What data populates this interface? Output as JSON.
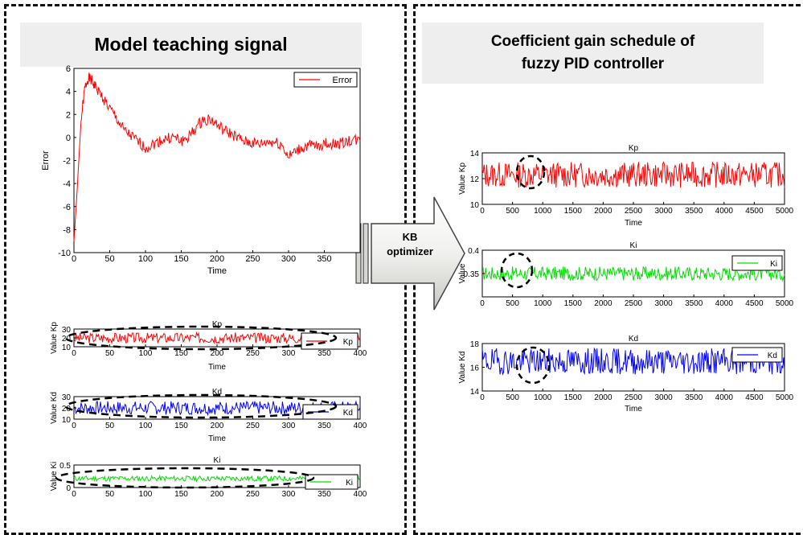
{
  "panels": {
    "left_title": "Model teaching signal",
    "right_title_line1": "Coefficient gain schedule of",
    "right_title_line2": "fuzzy PID controller"
  },
  "arrow": {
    "line1": "KB",
    "line2": "optimizer"
  },
  "colors": {
    "error": "#ff0000",
    "kp": "#ff0000",
    "kd": "#0000ff",
    "ki": "#00dd00",
    "panel_border": "#111111",
    "title_bg": "#eeeeee"
  },
  "chart_data": [
    {
      "id": "error",
      "type": "line",
      "title": "",
      "xlabel": "Time",
      "ylabel": "Error",
      "xlim": [
        0,
        400
      ],
      "ylim": [
        -10,
        6
      ],
      "xticks": [
        0,
        50,
        100,
        150,
        200,
        250,
        300,
        350
      ],
      "yticks": [
        6,
        4,
        2,
        0,
        -2,
        -4,
        -6,
        -8,
        -10
      ],
      "legend": "top-right",
      "series": [
        {
          "name": "Error",
          "x": [
            0,
            5,
            10,
            15,
            20,
            25,
            30,
            40,
            50,
            60,
            70,
            80,
            90,
            100,
            110,
            120,
            130,
            140,
            150,
            160,
            170,
            180,
            190,
            200,
            210,
            220,
            230,
            240,
            250,
            260,
            270,
            280,
            290,
            300,
            310,
            320,
            330,
            340,
            350,
            360,
            370,
            380,
            390,
            400
          ],
          "y": [
            -9,
            -4,
            1.5,
            4.2,
            5.2,
            4.9,
            4.4,
            3.5,
            2.5,
            1.6,
            0.6,
            0.1,
            -0.4,
            -0.9,
            -0.6,
            -0.3,
            -0.1,
            0,
            -0.3,
            0,
            0.8,
            1.5,
            1.6,
            1.1,
            0.6,
            0.3,
            -0.1,
            -0.4,
            -0.5,
            -0.6,
            -0.4,
            -0.4,
            -0.6,
            -1.7,
            -1.2,
            -0.9,
            -0.7,
            -0.8,
            -0.5,
            -0.6,
            -0.5,
            -0.4,
            -0.2,
            -0.3
          ]
        }
      ]
    },
    {
      "id": "left-kp",
      "type": "line",
      "title": "Kp",
      "xlabel": "Time",
      "ylabel": "Value Kp",
      "xlim": [
        0,
        400
      ],
      "ylim": [
        10,
        30
      ],
      "xticks": [
        0,
        50,
        100,
        150,
        200,
        250,
        300,
        350,
        400
      ],
      "yticks": [
        30,
        20,
        10
      ],
      "legend": "bottom-right",
      "series": [
        {
          "name": "Kp",
          "mean": 20,
          "amplitude": 6
        }
      ]
    },
    {
      "id": "left-kd",
      "type": "line",
      "title": "Kd",
      "xlabel": "Time",
      "ylabel": "Value Kd",
      "xlim": [
        0,
        400
      ],
      "ylim": [
        10,
        30
      ],
      "xticks": [
        0,
        50,
        100,
        150,
        200,
        250,
        300,
        350,
        400
      ],
      "yticks": [
        30,
        20,
        10
      ],
      "legend": "bottom-right",
      "series": [
        {
          "name": "Kd",
          "mean": 20,
          "amplitude": 6
        }
      ]
    },
    {
      "id": "left-ki",
      "type": "line",
      "title": "Ki",
      "xlabel": "",
      "ylabel": "Value Ki",
      "xlim": [
        0,
        400
      ],
      "ylim": [
        0,
        0.5
      ],
      "xticks": [
        0,
        50,
        100,
        150,
        200,
        250,
        300,
        350,
        400
      ],
      "yticks": [
        0.5,
        0
      ],
      "legend": "bottom-right",
      "series": [
        {
          "name": "Ki",
          "mean": 0.2,
          "amplitude": 0.06
        }
      ]
    },
    {
      "id": "right-kp",
      "type": "line",
      "title": "Kp",
      "xlabel": "Time",
      "ylabel": "Value Kp",
      "xlim": [
        0,
        5000
      ],
      "ylim": [
        10,
        14
      ],
      "xticks": [
        0,
        500,
        1000,
        1500,
        2000,
        2500,
        3000,
        3500,
        4000,
        4500,
        5000
      ],
      "yticks": [
        14,
        12,
        10
      ],
      "legend": "none",
      "series": [
        {
          "mean": 12.3,
          "amplitude": 1.0
        }
      ]
    },
    {
      "id": "right-ki",
      "type": "line",
      "title": "Ki",
      "xlabel": "",
      "ylabel": "Value",
      "xlim": [
        0,
        5000
      ],
      "ylim": [
        0.3,
        0.4
      ],
      "xticks": [
        0,
        500,
        1000,
        1500,
        2000,
        2500,
        3000,
        3500,
        4000,
        4500,
        5000
      ],
      "yticks": [
        0.4,
        0.35
      ],
      "legend": "top-right",
      "series": [
        {
          "name": "Ki",
          "mean": 0.35,
          "amplitude": 0.015
        }
      ]
    },
    {
      "id": "right-kd",
      "type": "line",
      "title": "Kd",
      "xlabel": "Time",
      "ylabel": "Value Kd",
      "xlim": [
        0,
        5000
      ],
      "ylim": [
        14,
        18
      ],
      "xticks": [
        0,
        500,
        1000,
        1500,
        2000,
        2500,
        3000,
        3500,
        4000,
        4500,
        5000
      ],
      "yticks": [
        18,
        16,
        14
      ],
      "legend": "top-right",
      "series": [
        {
          "name": "Kd",
          "mean": 16.5,
          "amplitude": 1.1
        }
      ]
    }
  ]
}
